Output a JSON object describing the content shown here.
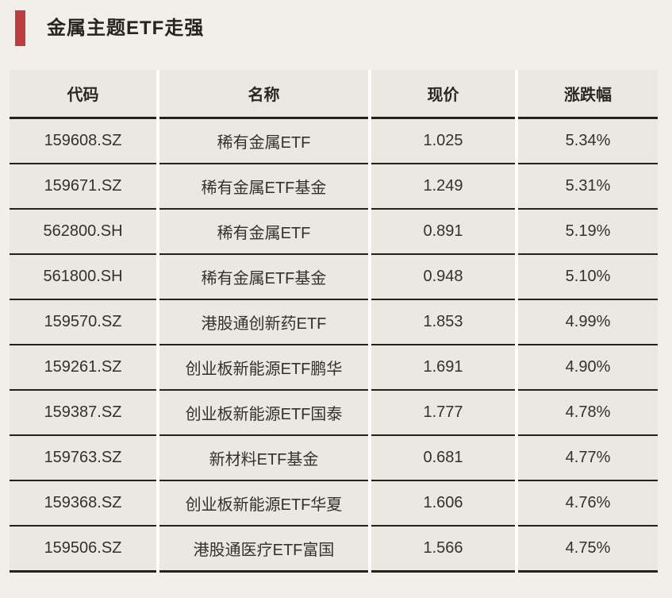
{
  "colors": {
    "page_background": "#f2eee8",
    "cell_background": "#ebe8e2",
    "column_gap": "#fdfcfa",
    "rule_line": "#25221d",
    "accent_red": "#bc3e3e",
    "text": "#34312c"
  },
  "header": {
    "title": "金属主题ETF走强"
  },
  "chart_data": {
    "type": "table",
    "title": "金属主题ETF走强",
    "columns": [
      "代码",
      "名称",
      "现价",
      "涨跌幅"
    ],
    "rows": [
      {
        "code": "159608.SZ",
        "name": "稀有金属ETF",
        "price": "1.025",
        "change": "5.34%"
      },
      {
        "code": "159671.SZ",
        "name": "稀有金属ETF基金",
        "price": "1.249",
        "change": "5.31%"
      },
      {
        "code": "562800.SH",
        "name": "稀有金属ETF",
        "price": "0.891",
        "change": "5.19%"
      },
      {
        "code": "561800.SH",
        "name": "稀有金属ETF基金",
        "price": "0.948",
        "change": "5.10%"
      },
      {
        "code": "159570.SZ",
        "name": "港股通创新药ETF",
        "price": "1.853",
        "change": "4.99%"
      },
      {
        "code": "159261.SZ",
        "name": "创业板新能源ETF鹏华",
        "price": "1.691",
        "change": "4.90%"
      },
      {
        "code": "159387.SZ",
        "name": "创业板新能源ETF国泰",
        "price": "1.777",
        "change": "4.78%"
      },
      {
        "code": "159763.SZ",
        "name": "新材料ETF基金",
        "price": "0.681",
        "change": "4.77%"
      },
      {
        "code": "159368.SZ",
        "name": "创业板新能源ETF华夏",
        "price": "1.606",
        "change": "4.76%"
      },
      {
        "code": "159506.SZ",
        "name": "港股通医疗ETF富国",
        "price": "1.566",
        "change": "4.75%"
      }
    ]
  }
}
